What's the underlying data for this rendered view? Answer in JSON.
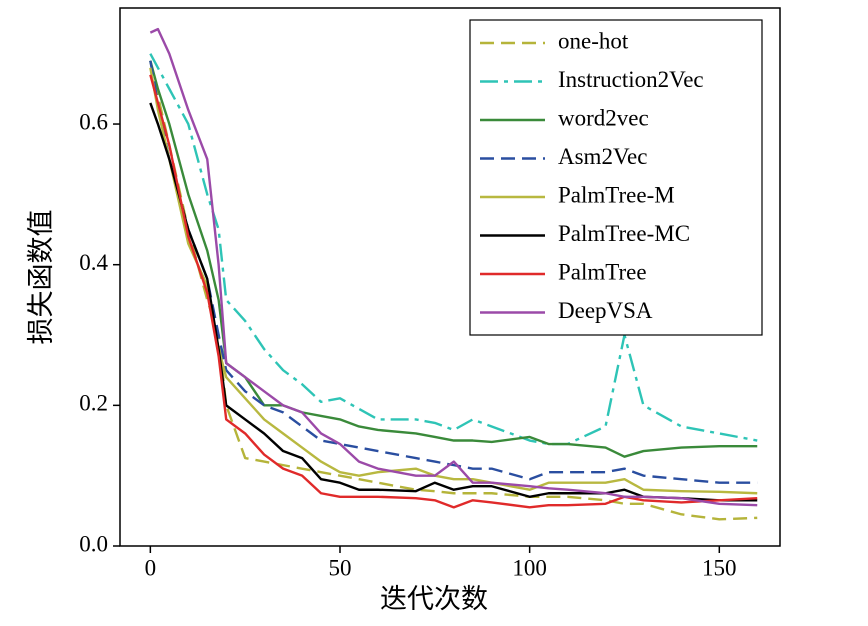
{
  "chart_data": {
    "type": "line",
    "xlabel": "迭代次数",
    "ylabel": "损失函数值",
    "x": [
      0,
      2,
      5,
      10,
      15,
      18,
      20,
      25,
      30,
      35,
      40,
      45,
      50,
      55,
      60,
      70,
      75,
      80,
      85,
      90,
      100,
      105,
      110,
      120,
      125,
      130,
      140,
      150,
      160
    ],
    "series": [
      {
        "name": "one-hot",
        "color": "#b5b43a",
        "linestyle": "dashed",
        "values": [
          0.69,
          0.64,
          0.57,
          0.45,
          0.35,
          0.3,
          0.2,
          0.125,
          0.12,
          0.115,
          0.11,
          0.105,
          0.1,
          0.095,
          0.09,
          0.08,
          0.078,
          0.075,
          0.075,
          0.075,
          0.07,
          0.07,
          0.07,
          0.065,
          0.06,
          0.06,
          0.045,
          0.038,
          0.04
        ]
      },
      {
        "name": "Instruction2Vec",
        "color": "#2ec4b6",
        "linestyle": "dashdot",
        "values": [
          0.7,
          0.68,
          0.65,
          0.6,
          0.5,
          0.45,
          0.35,
          0.32,
          0.28,
          0.25,
          0.23,
          0.205,
          0.21,
          0.195,
          0.18,
          0.18,
          0.175,
          0.165,
          0.18,
          0.17,
          0.15,
          0.145,
          0.145,
          0.17,
          0.3,
          0.2,
          0.17,
          0.16,
          0.15
        ]
      },
      {
        "name": "word2vec",
        "color": "#3a8a3a",
        "linestyle": "solid",
        "values": [
          0.69,
          0.65,
          0.6,
          0.5,
          0.42,
          0.35,
          0.26,
          0.24,
          0.2,
          0.2,
          0.19,
          0.185,
          0.18,
          0.17,
          0.165,
          0.16,
          0.155,
          0.15,
          0.15,
          0.148,
          0.155,
          0.145,
          0.145,
          0.14,
          0.127,
          0.135,
          0.14,
          0.142,
          0.142
        ]
      },
      {
        "name": "Asm2Vec",
        "color": "#2a4ea0",
        "linestyle": "dashed",
        "values": [
          0.69,
          0.63,
          0.55,
          0.45,
          0.38,
          0.3,
          0.25,
          0.22,
          0.2,
          0.19,
          0.17,
          0.15,
          0.145,
          0.14,
          0.135,
          0.125,
          0.12,
          0.115,
          0.11,
          0.11,
          0.095,
          0.105,
          0.105,
          0.105,
          0.11,
          0.1,
          0.095,
          0.09,
          0.09
        ]
      },
      {
        "name": "PalmTree-M",
        "color": "#b8b840",
        "linestyle": "solid",
        "values": [
          0.68,
          0.62,
          0.55,
          0.43,
          0.37,
          0.28,
          0.24,
          0.21,
          0.18,
          0.16,
          0.14,
          0.12,
          0.105,
          0.1,
          0.105,
          0.11,
          0.1,
          0.095,
          0.095,
          0.09,
          0.08,
          0.09,
          0.09,
          0.09,
          0.095,
          0.08,
          0.078,
          0.077,
          0.075
        ]
      },
      {
        "name": "PalmTree-MC",
        "color": "#000000",
        "linestyle": "solid",
        "values": [
          0.63,
          0.6,
          0.55,
          0.45,
          0.38,
          0.28,
          0.2,
          0.18,
          0.16,
          0.135,
          0.125,
          0.095,
          0.09,
          0.08,
          0.08,
          0.078,
          0.09,
          0.08,
          0.085,
          0.085,
          0.07,
          0.075,
          0.075,
          0.075,
          0.08,
          0.07,
          0.068,
          0.065,
          0.065
        ]
      },
      {
        "name": "PalmTree",
        "color": "#e02a2a",
        "linestyle": "solid",
        "values": [
          0.67,
          0.63,
          0.57,
          0.44,
          0.36,
          0.27,
          0.18,
          0.16,
          0.13,
          0.11,
          0.1,
          0.075,
          0.07,
          0.07,
          0.07,
          0.068,
          0.065,
          0.055,
          0.065,
          0.062,
          0.055,
          0.058,
          0.058,
          0.06,
          0.07,
          0.065,
          0.062,
          0.065,
          0.068
        ]
      },
      {
        "name": "DeepVSA",
        "color": "#9b4aa8",
        "linestyle": "solid",
        "values": [
          0.73,
          0.735,
          0.7,
          0.62,
          0.55,
          0.4,
          0.26,
          0.24,
          0.22,
          0.2,
          0.19,
          0.16,
          0.145,
          0.12,
          0.11,
          0.1,
          0.1,
          0.12,
          0.09,
          0.09,
          0.085,
          0.082,
          0.08,
          0.075,
          0.07,
          0.07,
          0.068,
          0.06,
          0.058
        ]
      }
    ],
    "xlim": [
      -8,
      166
    ],
    "ylim": [
      0,
      0.765
    ],
    "xticks": [
      0,
      50,
      100,
      150
    ],
    "yticks": [
      {
        "value": 0,
        "label": "0.0"
      },
      0.2,
      0.4,
      0.6
    ],
    "legend": "upper right"
  }
}
